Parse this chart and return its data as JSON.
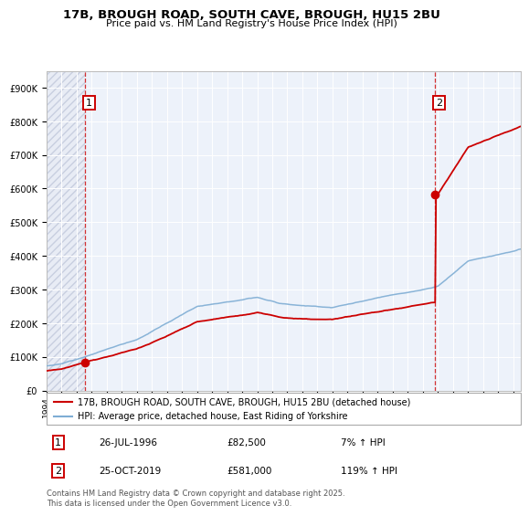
{
  "title": "17B, BROUGH ROAD, SOUTH CAVE, BROUGH, HU15 2BU",
  "subtitle": "Price paid vs. HM Land Registry's House Price Index (HPI)",
  "legend_line1": "17B, BROUGH ROAD, SOUTH CAVE, BROUGH, HU15 2BU (detached house)",
  "legend_line2": "HPI: Average price, detached house, East Riding of Yorkshire",
  "annotation1_date": "26-JUL-1996",
  "annotation1_price": "£82,500",
  "annotation1_hpi": "7% ↑ HPI",
  "annotation2_date": "25-OCT-2019",
  "annotation2_price": "£581,000",
  "annotation2_hpi": "119% ↑ HPI",
  "footnote": "Contains HM Land Registry data © Crown copyright and database right 2025.\nThis data is licensed under the Open Government Licence v3.0.",
  "property_color": "#cc0000",
  "hpi_color": "#7eadd4",
  "sale1_x": 1996.57,
  "sale1_y": 82500,
  "sale2_x": 2019.82,
  "sale2_y": 581000,
  "ylim": [
    0,
    950000
  ],
  "xlim_start": 1994.0,
  "xlim_end": 2025.5
}
